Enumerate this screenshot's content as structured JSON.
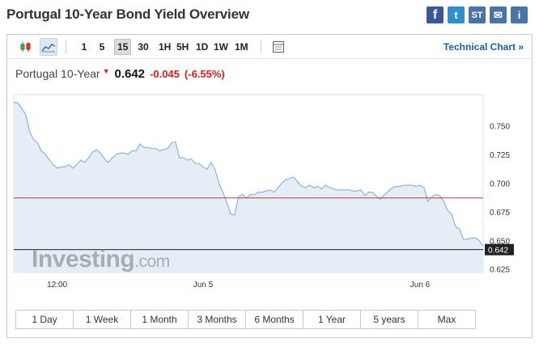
{
  "page": {
    "title": "Portugal 10-Year Bond Yield Overview"
  },
  "share": [
    {
      "name": "facebook-icon",
      "glyph": "f"
    },
    {
      "name": "twitter-icon",
      "glyph": "t"
    },
    {
      "name": "stocktwits-icon",
      "glyph": "ST"
    },
    {
      "name": "email-icon",
      "glyph": "✉"
    },
    {
      "name": "info-icon",
      "glyph": "i"
    }
  ],
  "toolbar": {
    "periods": [
      "1",
      "5",
      "15",
      "30",
      "1H",
      "5H",
      "1D",
      "1W",
      "1M"
    ],
    "active_period": "15",
    "technical_chart": "Technical Chart »"
  },
  "quote": {
    "name": "Portugal 10-Year",
    "last": "0.642",
    "change": "-0.045",
    "change_pct": "(-6.55%)"
  },
  "watermark": {
    "brand": "Investing",
    "suffix": ".com"
  },
  "ranges": [
    "1 Day",
    "1 Week",
    "1 Month",
    "3 Months",
    "6 Months",
    "1 Year",
    "5 years",
    "Max"
  ],
  "chart_data": {
    "type": "area",
    "x": [
      0,
      1,
      2,
      3,
      4,
      5,
      6,
      7,
      8,
      9,
      10,
      11,
      12,
      13,
      14,
      15,
      16,
      17,
      18,
      19,
      20,
      21,
      22,
      23,
      24,
      25,
      26,
      27,
      28,
      29,
      30,
      31,
      32,
      33,
      34,
      35,
      36,
      37,
      38,
      39,
      40,
      41,
      42,
      43,
      44,
      45,
      46,
      47,
      48,
      49,
      50,
      51,
      52,
      53,
      54,
      55,
      56,
      57,
      58,
      59,
      60,
      61,
      62,
      63,
      64,
      65,
      66,
      67,
      68,
      69,
      70,
      71,
      72,
      73,
      74,
      75,
      76,
      77,
      78,
      79,
      80,
      81,
      82,
      83,
      84,
      85,
      86,
      87,
      88,
      89,
      90,
      91,
      92,
      93,
      94,
      95,
      96,
      97,
      98,
      99,
      100,
      101,
      102,
      103,
      104,
      105,
      106,
      107,
      108,
      109,
      110,
      111,
      112,
      113,
      114,
      115,
      116,
      117,
      118,
      119
    ],
    "values": [
      0.77,
      0.77,
      0.765,
      0.76,
      0.745,
      0.738,
      0.735,
      0.728,
      0.725,
      0.72,
      0.716,
      0.713,
      0.714,
      0.714,
      0.716,
      0.713,
      0.716,
      0.72,
      0.718,
      0.722,
      0.727,
      0.729,
      0.726,
      0.721,
      0.718,
      0.722,
      0.725,
      0.726,
      0.726,
      0.725,
      0.728,
      0.728,
      0.734,
      0.731,
      0.731,
      0.73,
      0.73,
      0.728,
      0.729,
      0.73,
      0.735,
      0.736,
      0.722,
      0.722,
      0.72,
      0.721,
      0.717,
      0.717,
      0.714,
      0.712,
      0.718,
      0.712,
      0.7,
      0.692,
      0.683,
      0.673,
      0.672,
      0.688,
      0.69,
      0.687,
      0.69,
      0.69,
      0.692,
      0.692,
      0.693,
      0.694,
      0.692,
      0.696,
      0.7,
      0.703,
      0.704,
      0.705,
      0.701,
      0.697,
      0.696,
      0.698,
      0.696,
      0.697,
      0.695,
      0.698,
      0.696,
      0.695,
      0.694,
      0.694,
      0.694,
      0.694,
      0.693,
      0.693,
      0.694,
      0.689,
      0.692,
      0.692,
      0.688,
      0.686,
      0.69,
      0.693,
      0.696,
      0.697,
      0.697,
      0.698,
      0.698,
      0.698,
      0.697,
      0.698,
      0.696,
      0.684,
      0.688,
      0.69,
      0.689,
      0.684,
      0.676,
      0.673,
      0.662,
      0.66,
      0.651,
      0.651,
      0.652,
      0.652,
      0.65,
      0.645
    ],
    "ylim": [
      0.622,
      0.777
    ],
    "y_ticks": [
      "0.625",
      "0.650",
      "0.675",
      "0.700",
      "0.725",
      "0.750"
    ],
    "x_ticks": [
      {
        "label": "12:00",
        "x": 11
      },
      {
        "label": "Jun 5",
        "x": 48
      },
      {
        "label": "Jun 6",
        "x": 103
      }
    ],
    "previous_close": 0.687,
    "last_value": 0.642,
    "last_label": "0.642",
    "colors": {
      "line": "#8fb3d3",
      "fill": "#e5eef6",
      "prev_close": "#b83a3a",
      "last": "#222222"
    }
  }
}
